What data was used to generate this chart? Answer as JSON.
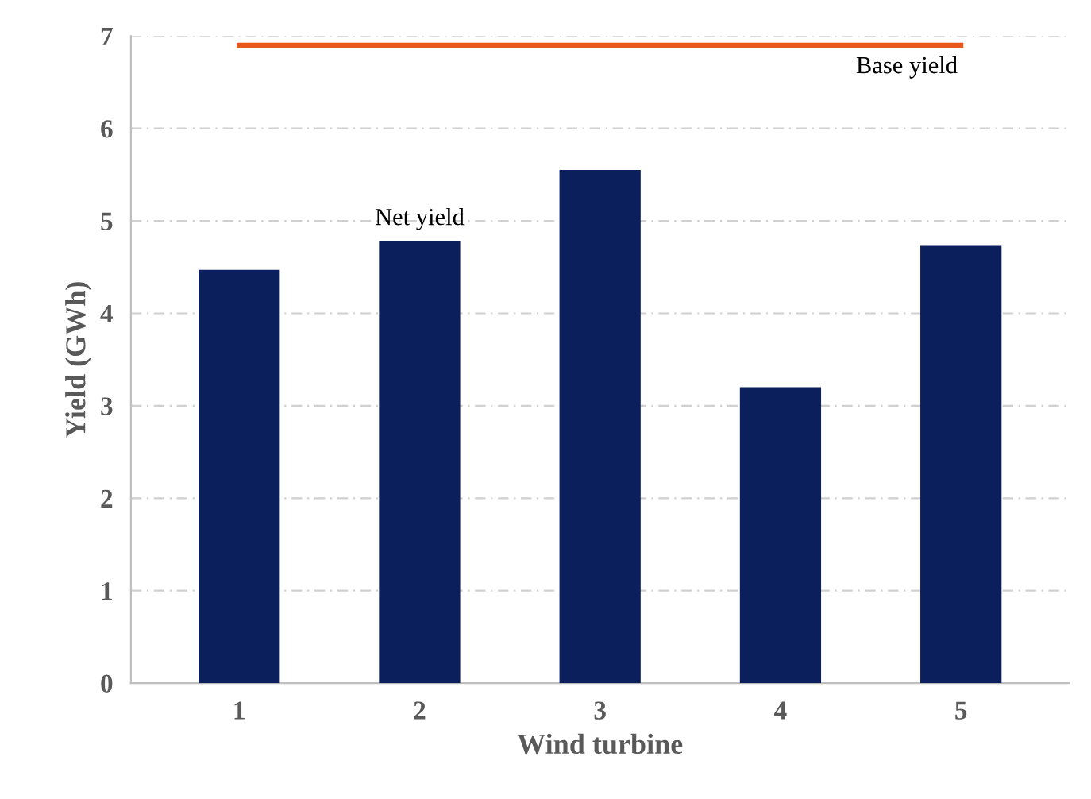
{
  "chart_data": {
    "type": "bar",
    "xlabel": "Wind turbine",
    "ylabel": "Yield (GWh)",
    "categories": [
      "1",
      "2",
      "3",
      "4",
      "5"
    ],
    "series": [
      {
        "name": "Net yield",
        "color": "#0b1f5c",
        "values": [
          4.47,
          4.78,
          5.55,
          3.2,
          4.73
        ]
      },
      {
        "name": "Base yield",
        "type": "line",
        "color": "#e8581c",
        "values": [
          6.9,
          6.9,
          6.9,
          6.9,
          6.9
        ]
      }
    ],
    "ylim": [
      0,
      7
    ],
    "yticks": [
      0,
      1,
      2,
      3,
      4,
      5,
      6,
      7
    ],
    "grid": "y"
  }
}
